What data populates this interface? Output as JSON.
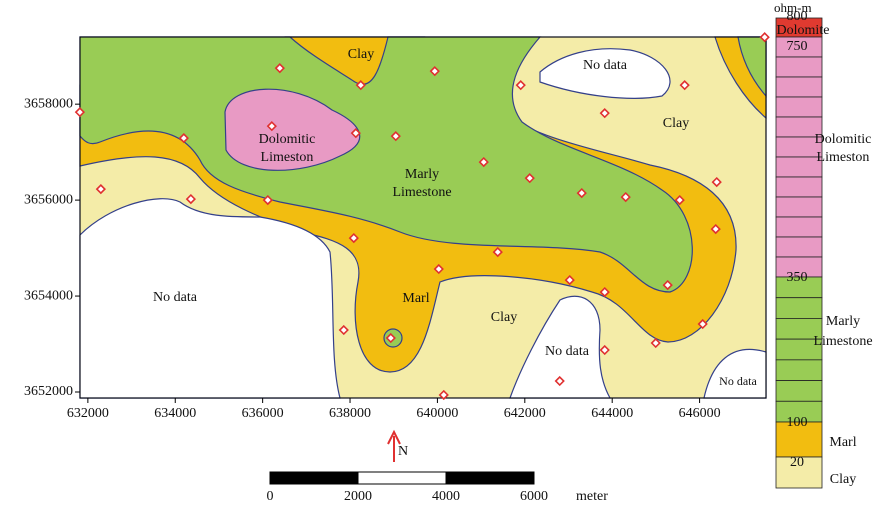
{
  "map": {
    "x_axis": {
      "lim": [
        631820,
        647520
      ],
      "ticks": [
        632000,
        634000,
        636000,
        638000,
        640000,
        642000,
        644000,
        646000
      ]
    },
    "y_axis": {
      "lim": [
        3651875,
        3659400
      ],
      "ticks": [
        3652000,
        3654000,
        3656000,
        3658000
      ]
    },
    "regions": {
      "clay_top": "Clay",
      "nodata_top_right": "No data",
      "clay_right": "Clay",
      "dolomitic": [
        "Dolomitic",
        "Limeston"
      ],
      "marly": [
        "Marly",
        "Limestone"
      ],
      "nodata_left": "No data",
      "marl": "Marl",
      "clay_bottom": "Clay",
      "nodata_bottom": "No data",
      "nodata_bottom_right": "No data"
    },
    "sample_points": [
      [
        631817,
        3657833
      ],
      [
        636393,
        3658750
      ],
      [
        638246,
        3658396
      ],
      [
        639939,
        3658688
      ],
      [
        641907,
        3658396
      ],
      [
        645659,
        3658396
      ],
      [
        647490,
        3659396
      ],
      [
        643829,
        3657813
      ],
      [
        634196,
        3657292
      ],
      [
        636210,
        3657542
      ],
      [
        638132,
        3657396
      ],
      [
        639047,
        3657333
      ],
      [
        641060,
        3656792
      ],
      [
        642113,
        3656458
      ],
      [
        643303,
        3656146
      ],
      [
        644309,
        3656063
      ],
      [
        645545,
        3656000
      ],
      [
        646392,
        3656375
      ],
      [
        632297,
        3656229
      ],
      [
        634357,
        3656021
      ],
      [
        636118,
        3656000
      ],
      [
        638086,
        3655208
      ],
      [
        640031,
        3654563
      ],
      [
        641381,
        3654917
      ],
      [
        646369,
        3655396
      ],
      [
        643028,
        3654333
      ],
      [
        643829,
        3654083
      ],
      [
        645270,
        3654229
      ],
      [
        637857,
        3653292
      ],
      [
        638933,
        3653125
      ],
      [
        646071,
        3653417
      ],
      [
        644996,
        3653021
      ],
      [
        643829,
        3652875
      ],
      [
        642799,
        3652229
      ],
      [
        640145,
        3651938
      ]
    ],
    "point_color": "#e03030",
    "north": "N",
    "scale_bar": {
      "ticks": [
        "0",
        "2000",
        "4000",
        "6000"
      ],
      "unit": "meter"
    }
  },
  "legend": {
    "unit": "ohm-m",
    "ticks": [
      "800",
      "750",
      "350",
      "100",
      "20"
    ],
    "classes": [
      {
        "name": [
          "Dolomite"
        ],
        "color": "#e03a30"
      },
      {
        "name": [
          "Dolomitic",
          "Limeston"
        ],
        "color": "#e89ac4"
      },
      {
        "name": [
          "Marly",
          "Limestone"
        ],
        "color": "#99cc55"
      },
      {
        "name": [
          "Marl"
        ],
        "color": "#f2bd10"
      },
      {
        "name": [
          "Clay"
        ],
        "color": "#f4eca8"
      }
    ]
  }
}
